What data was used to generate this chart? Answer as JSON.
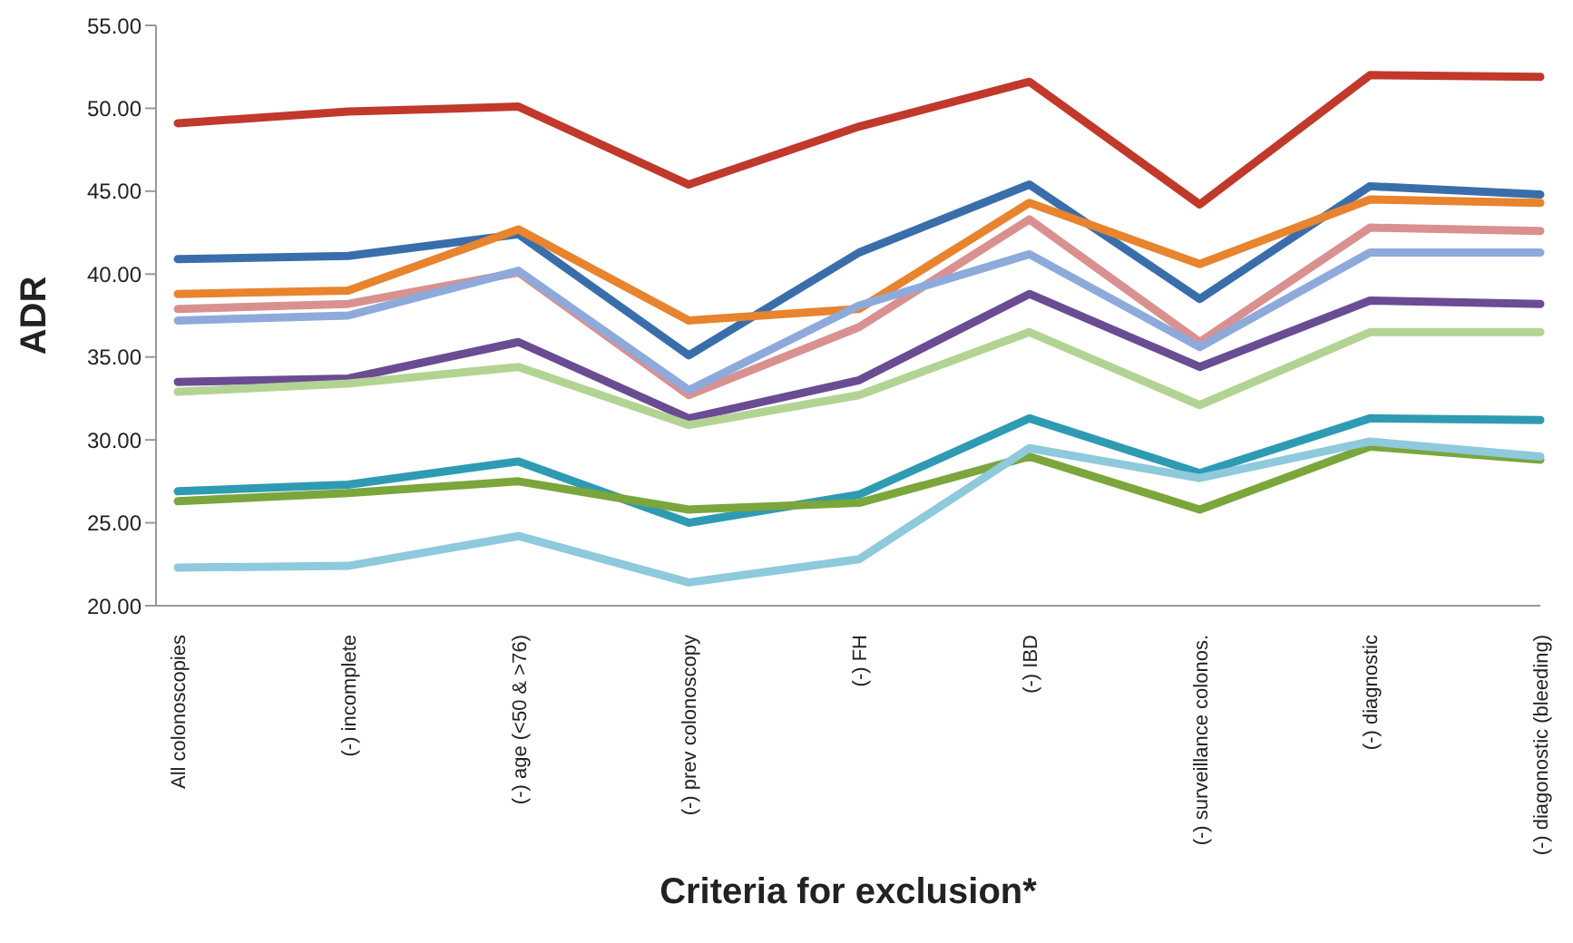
{
  "chart_data": {
    "type": "line",
    "xlabel": "Criteria for exclusion*",
    "ylabel": "ADR",
    "categories": [
      "All colonoscopies",
      "(-)  incomplete",
      "(-) age (<50 & >76)",
      "(-) prev colonoscopy",
      "(-) FH",
      "(-) IBD",
      "(-) surveillance colonos.",
      "(-) diagnostic",
      "(-) diagonostic (bleeding)"
    ],
    "ylim": [
      20,
      55
    ],
    "yticks": [
      {
        "value": 20,
        "label": "20.00"
      },
      {
        "value": 25,
        "label": "25.00"
      },
      {
        "value": 30,
        "label": "30.00"
      },
      {
        "value": 35,
        "label": "35.00"
      },
      {
        "value": 40,
        "label": "40.00"
      },
      {
        "value": 45,
        "label": "45.00"
      },
      {
        "value": 50,
        "label": "50.00"
      },
      {
        "value": 55,
        "label": "55.00"
      }
    ],
    "grid": false,
    "legend": false,
    "marker": "none",
    "line_style": "solid",
    "series": [
      {
        "color": "#c0392b",
        "values": [
          49.1,
          49.8,
          50.1,
          45.4,
          48.9,
          51.6,
          44.2,
          52.0,
          51.9
        ]
      },
      {
        "color": "#3a6eab",
        "values": [
          40.9,
          41.1,
          42.4,
          35.1,
          41.3,
          45.4,
          38.5,
          45.3,
          44.8
        ]
      },
      {
        "color": "#e8832e",
        "values": [
          38.8,
          39.0,
          42.7,
          37.2,
          37.9,
          44.3,
          40.6,
          44.5,
          44.3
        ]
      },
      {
        "color": "#d99190",
        "values": [
          37.9,
          38.2,
          40.1,
          32.7,
          36.8,
          43.3,
          35.9,
          42.8,
          42.6
        ]
      },
      {
        "color": "#8eaadb",
        "values": [
          37.2,
          37.5,
          40.2,
          33.0,
          38.1,
          41.2,
          35.6,
          41.3,
          41.3
        ]
      },
      {
        "color": "#6a4c93",
        "values": [
          33.5,
          33.7,
          35.9,
          31.3,
          33.6,
          38.8,
          34.4,
          38.4,
          38.2
        ]
      },
      {
        "color": "#b3d393",
        "values": [
          32.9,
          33.4,
          34.4,
          30.9,
          32.7,
          36.5,
          32.1,
          36.5,
          36.5
        ]
      },
      {
        "color": "#2e9bb3",
        "values": [
          26.9,
          27.3,
          28.7,
          25.0,
          26.7,
          31.3,
          28.0,
          31.3,
          31.2
        ]
      },
      {
        "color": "#7aa63c",
        "values": [
          26.3,
          26.8,
          27.5,
          25.8,
          26.2,
          29.0,
          25.8,
          29.6,
          28.8
        ]
      },
      {
        "color": "#8ec9dc",
        "values": [
          22.3,
          22.4,
          24.2,
          21.4,
          22.8,
          29.5,
          27.7,
          29.9,
          29.0
        ]
      }
    ]
  }
}
